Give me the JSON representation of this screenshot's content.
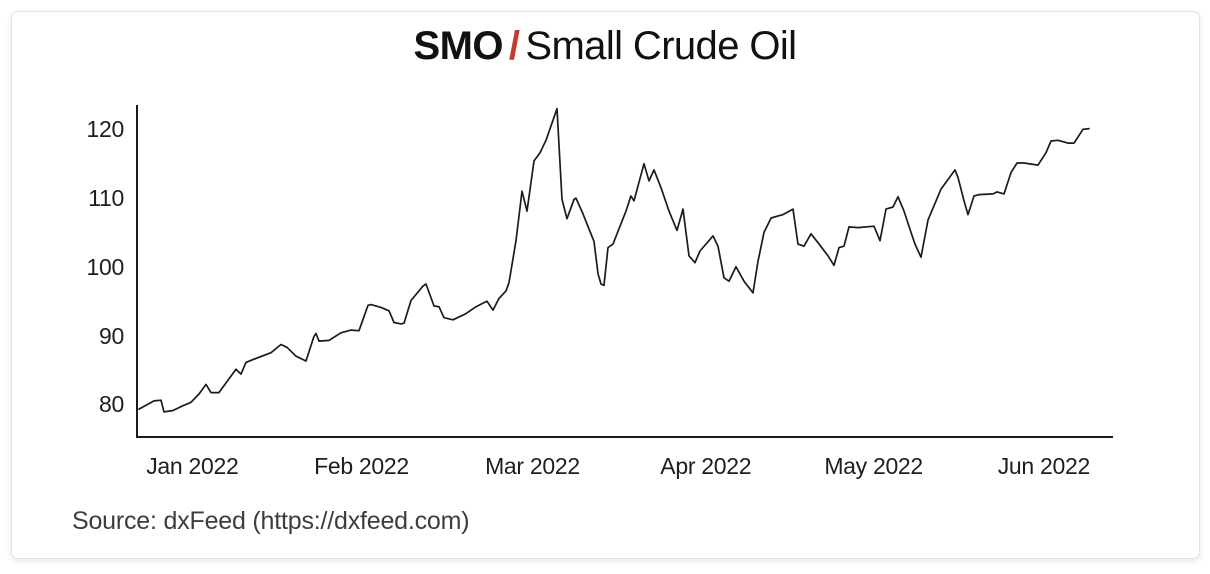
{
  "header": {
    "symbol": "SMO",
    "separator": "/",
    "separator_color": "#c23b2e",
    "name": "Small Crude Oil"
  },
  "footer": {
    "source": "Source: dxFeed (https://dxfeed.com)"
  },
  "chart_data": {
    "type": "line",
    "title": "SMO / Small Crude Oil",
    "xlabel": "",
    "ylabel": "",
    "x_unit": "time (late Dec 2021 - mid Jun 2022), t = fraction across x-axis",
    "ylim": [
      75.1,
      123.1
    ],
    "grid": false,
    "legend": "none",
    "line_color": "#1b1b1b",
    "axis_color": "#1b1b1b",
    "y_ticks": [
      80,
      90,
      100,
      110,
      120
    ],
    "x_ticks": [
      {
        "label": "Jan 2022",
        "t": 0.0577
      },
      {
        "label": "Feb 2022",
        "t": 0.2308
      },
      {
        "label": "Mar 2022",
        "t": 0.4058
      },
      {
        "label": "Apr 2022",
        "t": 0.5832
      },
      {
        "label": "May 2022",
        "t": 0.755
      },
      {
        "label": "Jun 2022",
        "t": 0.9292
      }
    ],
    "points": [
      [
        0.0031,
        79.3
      ],
      [
        0.0184,
        80.5
      ],
      [
        0.0256,
        80.6
      ],
      [
        0.0287,
        78.9
      ],
      [
        0.0379,
        79.1
      ],
      [
        0.0481,
        79.8
      ],
      [
        0.0563,
        80.3
      ],
      [
        0.0645,
        81.5
      ],
      [
        0.0716,
        82.9
      ],
      [
        0.0768,
        81.7
      ],
      [
        0.0849,
        81.7
      ],
      [
        0.1024,
        85.1
      ],
      [
        0.1075,
        84.4
      ],
      [
        0.1126,
        86.1
      ],
      [
        0.1198,
        86.5
      ],
      [
        0.1382,
        87.5
      ],
      [
        0.1484,
        88.7
      ],
      [
        0.1546,
        88.3
      ],
      [
        0.1638,
        87.0
      ],
      [
        0.174,
        86.3
      ],
      [
        0.1822,
        89.9
      ],
      [
        0.1842,
        90.3
      ],
      [
        0.1873,
        89.2
      ],
      [
        0.1975,
        89.3
      ],
      [
        0.2098,
        90.4
      ],
      [
        0.2201,
        90.8
      ],
      [
        0.2282,
        90.7
      ],
      [
        0.2375,
        94.4
      ],
      [
        0.2405,
        94.5
      ],
      [
        0.2508,
        94.1
      ],
      [
        0.259,
        93.6
      ],
      [
        0.2641,
        91.9
      ],
      [
        0.2712,
        91.7
      ],
      [
        0.2743,
        91.8
      ],
      [
        0.2815,
        95.1
      ],
      [
        0.2938,
        97.2
      ],
      [
        0.2968,
        97.5
      ],
      [
        0.305,
        94.3
      ],
      [
        0.3101,
        94.2
      ],
      [
        0.3153,
        92.6
      ],
      [
        0.3245,
        92.3
      ],
      [
        0.3378,
        93.2
      ],
      [
        0.348,
        94.2
      ],
      [
        0.3562,
        94.8
      ],
      [
        0.3593,
        95.0
      ],
      [
        0.3654,
        93.7
      ],
      [
        0.3715,
        95.4
      ],
      [
        0.3787,
        96.5
      ],
      [
        0.3818,
        97.7
      ],
      [
        0.3889,
        103.8
      ],
      [
        0.3951,
        111.0
      ],
      [
        0.4002,
        108.1
      ],
      [
        0.4074,
        115.4
      ],
      [
        0.4094,
        115.8
      ],
      [
        0.4135,
        116.6
      ],
      [
        0.4197,
        118.4
      ],
      [
        0.4309,
        123.0
      ],
      [
        0.436,
        109.8
      ],
      [
        0.4411,
        107.0
      ],
      [
        0.4483,
        109.8
      ],
      [
        0.4504,
        110.0
      ],
      [
        0.4575,
        107.7
      ],
      [
        0.4637,
        105.5
      ],
      [
        0.4688,
        103.7
      ],
      [
        0.4729,
        99.0
      ],
      [
        0.4759,
        97.5
      ],
      [
        0.479,
        97.3
      ],
      [
        0.4831,
        102.8
      ],
      [
        0.4882,
        103.3
      ],
      [
        0.5015,
        108.1
      ],
      [
        0.5066,
        110.3
      ],
      [
        0.5097,
        109.6
      ],
      [
        0.52,
        115.0
      ],
      [
        0.5251,
        112.5
      ],
      [
        0.5302,
        114.1
      ],
      [
        0.5374,
        111.5
      ],
      [
        0.5455,
        108.1
      ],
      [
        0.5537,
        105.3
      ],
      [
        0.5599,
        108.4
      ],
      [
        0.566,
        101.6
      ],
      [
        0.5722,
        100.6
      ],
      [
        0.5773,
        102.3
      ],
      [
        0.5906,
        104.5
      ],
      [
        0.5957,
        103.0
      ],
      [
        0.6018,
        98.4
      ],
      [
        0.607,
        97.9
      ],
      [
        0.6141,
        100.0
      ],
      [
        0.6223,
        97.9
      ],
      [
        0.6315,
        96.2
      ],
      [
        0.6366,
        100.8
      ],
      [
        0.6428,
        105.0
      ],
      [
        0.65,
        107.1
      ],
      [
        0.6622,
        107.6
      ],
      [
        0.6725,
        108.4
      ],
      [
        0.6776,
        103.3
      ],
      [
        0.6837,
        103.0
      ],
      [
        0.6909,
        104.8
      ],
      [
        0.6981,
        103.5
      ],
      [
        0.7083,
        101.6
      ],
      [
        0.7144,
        100.2
      ],
      [
        0.7195,
        102.8
      ],
      [
        0.7247,
        103.0
      ],
      [
        0.7298,
        105.8
      ],
      [
        0.739,
        105.7
      ],
      [
        0.7554,
        105.9
      ],
      [
        0.7615,
        103.8
      ],
      [
        0.7677,
        108.4
      ],
      [
        0.7748,
        108.7
      ],
      [
        0.7799,
        110.2
      ],
      [
        0.7861,
        108.1
      ],
      [
        0.7932,
        105.0
      ],
      [
        0.7973,
        103.3
      ],
      [
        0.8035,
        101.4
      ],
      [
        0.8106,
        106.8
      ],
      [
        0.8239,
        111.3
      ],
      [
        0.8383,
        114.1
      ],
      [
        0.8413,
        113.0
      ],
      [
        0.8475,
        109.6
      ],
      [
        0.8516,
        107.6
      ],
      [
        0.8577,
        110.3
      ],
      [
        0.8629,
        110.5
      ],
      [
        0.8772,
        110.6
      ],
      [
        0.8813,
        110.9
      ],
      [
        0.8884,
        110.6
      ],
      [
        0.8956,
        113.7
      ],
      [
        0.9017,
        115.1
      ],
      [
        0.9089,
        115.1
      ],
      [
        0.9232,
        114.8
      ],
      [
        0.9314,
        116.6
      ],
      [
        0.9365,
        118.3
      ],
      [
        0.9437,
        118.4
      ],
      [
        0.9539,
        118.0
      ],
      [
        0.9601,
        118.0
      ],
      [
        0.9693,
        120.0
      ],
      [
        0.9754,
        120.1
      ]
    ]
  }
}
